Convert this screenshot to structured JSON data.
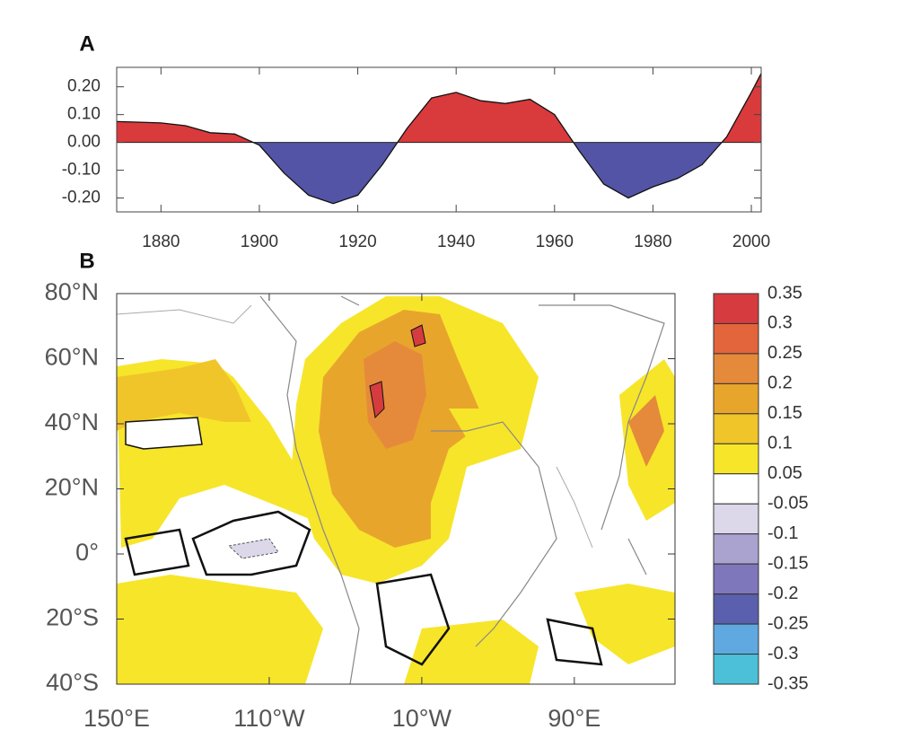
{
  "chart_data": [
    {
      "type": "area",
      "panel_label": "A",
      "x": [
        1871,
        1875,
        1880,
        1885,
        1890,
        1895,
        1900,
        1905,
        1910,
        1915,
        1920,
        1925,
        1930,
        1935,
        1940,
        1945,
        1950,
        1955,
        1960,
        1965,
        1970,
        1975,
        1980,
        1985,
        1990,
        1995,
        2000,
        2002
      ],
      "series": [
        {
          "values": [
            0.075,
            0.073,
            0.07,
            0.06,
            0.035,
            0.03,
            -0.01,
            -0.11,
            -0.19,
            -0.22,
            -0.19,
            -0.08,
            0.05,
            0.16,
            0.18,
            0.15,
            0.14,
            0.155,
            0.1,
            -0.03,
            -0.15,
            -0.2,
            -0.16,
            -0.13,
            -0.08,
            0.02,
            0.18,
            0.248
          ]
        }
      ],
      "positive_color": "#d93a3c",
      "negative_color": "#5454a6",
      "xlim": [
        1871,
        2002
      ],
      "ylim": [
        -0.25,
        0.27
      ],
      "xticks": [
        1880,
        1900,
        1920,
        1940,
        1960,
        1980,
        2000
      ],
      "yticks": [
        {
          "value": 0.2,
          "label": "0.20"
        },
        {
          "value": 0.1,
          "label": "0.10"
        },
        {
          "value": 0,
          "label": "0.00"
        },
        {
          "value": -0.1,
          "label": "-0.10"
        },
        {
          "value": -0.2,
          "label": "-0.20"
        }
      ]
    },
    {
      "type": "map",
      "panel_label": "B",
      "xlim": [
        150,
        516
      ],
      "ylim": [
        -40,
        80
      ],
      "xticks": [
        {
          "value": 150,
          "label": "150°E"
        },
        {
          "value": 250,
          "label": "110°W"
        },
        {
          "value": 350,
          "label": "10°W"
        },
        {
          "value": 450,
          "label": "90°E"
        }
      ],
      "yticks": [
        {
          "value": 80,
          "label": "80°N"
        },
        {
          "value": 60,
          "label": "60°N"
        },
        {
          "value": 40,
          "label": "40°N"
        },
        {
          "value": 20,
          "label": "20°N"
        },
        {
          "value": 0,
          "label": "0°"
        },
        {
          "value": -20,
          "label": "20°S"
        },
        {
          "value": -40,
          "label": "40°S"
        }
      ],
      "colorbar": {
        "levels": [
          0.35,
          0.3,
          0.25,
          0.2,
          0.15,
          0.1,
          0.05,
          -0.05,
          -0.1,
          -0.15,
          -0.2,
          -0.25,
          -0.3,
          -0.35
        ],
        "colors": [
          "#d63b3f",
          "#e2653c",
          "#e58a3a",
          "#e8a52c",
          "#f0c52a",
          "#f7e52a",
          "#ffffff",
          "#dcd8ea",
          "#aaa3cf",
          "#7f77bb",
          "#5a60ad",
          "#5fa9e0",
          "#4cc0d8"
        ]
      }
    }
  ]
}
